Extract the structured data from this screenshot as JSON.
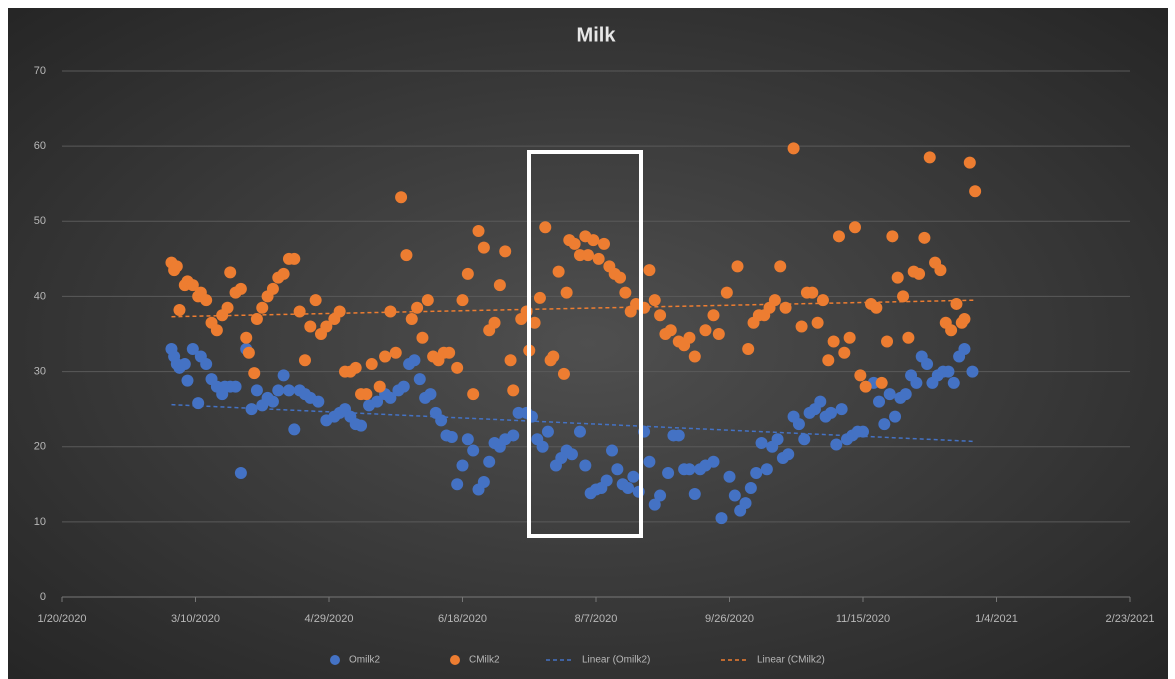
{
  "chart_data": {
    "type": "scatter",
    "title": "Milk",
    "xlim": [
      "2020-01-20",
      "2021-02-23"
    ],
    "xticks": [
      {
        "value": "2020-01-20",
        "label": "1/20/2020"
      },
      {
        "value": "2020-03-10",
        "label": "3/10/2020"
      },
      {
        "value": "2020-04-29",
        "label": "4/29/2020"
      },
      {
        "value": "2020-06-18",
        "label": "6/18/2020"
      },
      {
        "value": "2020-08-07",
        "label": "8/7/2020"
      },
      {
        "value": "2020-09-26",
        "label": "9/26/2020"
      },
      {
        "value": "2020-11-15",
        "label": "11/15/2020"
      },
      {
        "value": "2021-01-04",
        "label": "1/4/2021"
      },
      {
        "value": "2021-02-23",
        "label": "2/23/2021"
      }
    ],
    "ylim": [
      0,
      70
    ],
    "yticks": [
      0,
      10,
      20,
      30,
      40,
      50,
      60,
      70
    ],
    "grid": true,
    "legend": "bottom",
    "series": [
      {
        "name": "Omilk2",
        "color": "#4472c4",
        "x": [
          "2020-03-01",
          "2020-03-02",
          "2020-03-03",
          "2020-03-04",
          "2020-03-06",
          "2020-03-07",
          "2020-03-09",
          "2020-03-11",
          "2020-03-12",
          "2020-03-14",
          "2020-03-16",
          "2020-03-18",
          "2020-03-20",
          "2020-03-21",
          "2020-03-23",
          "2020-03-25",
          "2020-03-27",
          "2020-03-29",
          "2020-03-31",
          "2020-04-02",
          "2020-04-04",
          "2020-04-06",
          "2020-04-08",
          "2020-04-10",
          "2020-04-12",
          "2020-04-14",
          "2020-04-16",
          "2020-04-18",
          "2020-04-20",
          "2020-04-22",
          "2020-04-25",
          "2020-04-28",
          "2020-05-01",
          "2020-05-03",
          "2020-05-05",
          "2020-05-07",
          "2020-05-09",
          "2020-05-11",
          "2020-05-14",
          "2020-05-17",
          "2020-05-20",
          "2020-05-22",
          "2020-05-25",
          "2020-05-27",
          "2020-05-29",
          "2020-05-31",
          "2020-06-02",
          "2020-06-04",
          "2020-06-06",
          "2020-06-08",
          "2020-06-10",
          "2020-06-12",
          "2020-06-14",
          "2020-06-16",
          "2020-06-18",
          "2020-06-20",
          "2020-06-22",
          "2020-06-24",
          "2020-06-26",
          "2020-06-28",
          "2020-06-30",
          "2020-07-02",
          "2020-07-04",
          "2020-07-07",
          "2020-07-09",
          "2020-07-12",
          "2020-07-14",
          "2020-07-16",
          "2020-07-18",
          "2020-07-20",
          "2020-07-23",
          "2020-07-25",
          "2020-07-27",
          "2020-07-29",
          "2020-08-01",
          "2020-08-03",
          "2020-08-05",
          "2020-08-07",
          "2020-08-09",
          "2020-08-11",
          "2020-08-13",
          "2020-08-15",
          "2020-08-17",
          "2020-08-19",
          "2020-08-21",
          "2020-08-23",
          "2020-08-25",
          "2020-08-27",
          "2020-08-29",
          "2020-08-31",
          "2020-09-03",
          "2020-09-05",
          "2020-09-07",
          "2020-09-09",
          "2020-09-11",
          "2020-09-13",
          "2020-09-15",
          "2020-09-17",
          "2020-09-20",
          "2020-09-23",
          "2020-09-26",
          "2020-09-28",
          "2020-09-30",
          "2020-10-02",
          "2020-10-04",
          "2020-10-06",
          "2020-10-08",
          "2020-10-10",
          "2020-10-12",
          "2020-10-14",
          "2020-10-16",
          "2020-10-18",
          "2020-10-20",
          "2020-10-22",
          "2020-10-24",
          "2020-10-26",
          "2020-10-28",
          "2020-10-30",
          "2020-11-01",
          "2020-11-03",
          "2020-11-05",
          "2020-11-07",
          "2020-11-09",
          "2020-11-11",
          "2020-11-13",
          "2020-11-15",
          "2020-11-19",
          "2020-11-21",
          "2020-11-23",
          "2020-11-25",
          "2020-11-27",
          "2020-11-29",
          "2020-12-01",
          "2020-12-03",
          "2020-12-05",
          "2020-12-07",
          "2020-12-09",
          "2020-12-11",
          "2020-12-13",
          "2020-12-15",
          "2020-12-17",
          "2020-12-19",
          "2020-12-21",
          "2020-12-23",
          "2020-12-26"
        ],
        "values": [
          33,
          32,
          31,
          30.5,
          31,
          28.8,
          33,
          25.8,
          32,
          31,
          29,
          28,
          27,
          28,
          28,
          28,
          16.5,
          33,
          25,
          27.5,
          25.5,
          26.5,
          26,
          27.5,
          29.5,
          27.5,
          22.3,
          27.5,
          27,
          26.5,
          26,
          23.5,
          24,
          24.5,
          25,
          24,
          23,
          22.8,
          25.5,
          26,
          27,
          26.5,
          27.5,
          28,
          31,
          31.5,
          29,
          26.5,
          27,
          24.5,
          23.5,
          21.5,
          21.3,
          15,
          17.5,
          21,
          19.5,
          14.3,
          15.3,
          18,
          20.5,
          20,
          21,
          21.5,
          24.5,
          24.5,
          24,
          21,
          20,
          22,
          17.5,
          18.5,
          19.5,
          19,
          22,
          17.5,
          13.8,
          14.3,
          14.5,
          15.5,
          19.5,
          17,
          15,
          14.5,
          16,
          14,
          22,
          18,
          12.3,
          13.5,
          16.5,
          21.5,
          21.5,
          17,
          17,
          13.7,
          17,
          17.5,
          18,
          10.5,
          16,
          13.5,
          11.5,
          12.5,
          14.5,
          16.5,
          20.5,
          17,
          20,
          21,
          18.5,
          19,
          24,
          23,
          21,
          24.5,
          25,
          26,
          24,
          24.5,
          20.3,
          25,
          21,
          21.5,
          22,
          22,
          28.5,
          26,
          23,
          27,
          24,
          26.5,
          27,
          29.5,
          28.5,
          32,
          31,
          28.5,
          29.5,
          30,
          30,
          28.5,
          32,
          33,
          30
        ]
      },
      {
        "name": "CMilk2",
        "color": "#ed7d31",
        "x": [
          "2020-03-01",
          "2020-03-02",
          "2020-03-03",
          "2020-03-04",
          "2020-03-06",
          "2020-03-07",
          "2020-03-09",
          "2020-03-11",
          "2020-03-12",
          "2020-03-14",
          "2020-03-16",
          "2020-03-18",
          "2020-03-20",
          "2020-03-22",
          "2020-03-23",
          "2020-03-25",
          "2020-03-27",
          "2020-03-29",
          "2020-03-30",
          "2020-04-01",
          "2020-04-02",
          "2020-04-04",
          "2020-04-06",
          "2020-04-08",
          "2020-04-10",
          "2020-04-12",
          "2020-04-14",
          "2020-04-16",
          "2020-04-18",
          "2020-04-20",
          "2020-04-22",
          "2020-04-24",
          "2020-04-26",
          "2020-04-28",
          "2020-05-01",
          "2020-05-03",
          "2020-05-05",
          "2020-05-07",
          "2020-05-09",
          "2020-05-11",
          "2020-05-13",
          "2020-05-15",
          "2020-05-18",
          "2020-05-20",
          "2020-05-22",
          "2020-05-24",
          "2020-05-26",
          "2020-05-28",
          "2020-05-30",
          "2020-06-01",
          "2020-06-03",
          "2020-06-05",
          "2020-06-07",
          "2020-06-09",
          "2020-06-11",
          "2020-06-13",
          "2020-06-16",
          "2020-06-18",
          "2020-06-20",
          "2020-06-22",
          "2020-06-24",
          "2020-06-26",
          "2020-06-28",
          "2020-06-30",
          "2020-07-02",
          "2020-07-04",
          "2020-07-06",
          "2020-07-07",
          "2020-07-10",
          "2020-07-12",
          "2020-07-13",
          "2020-07-15",
          "2020-07-17",
          "2020-07-19",
          "2020-07-21",
          "2020-07-22",
          "2020-07-24",
          "2020-07-26",
          "2020-07-27",
          "2020-07-28",
          "2020-07-30",
          "2020-08-01",
          "2020-08-03",
          "2020-08-04",
          "2020-08-06",
          "2020-08-08",
          "2020-08-10",
          "2020-08-12",
          "2020-08-14",
          "2020-08-16",
          "2020-08-18",
          "2020-08-20",
          "2020-08-22",
          "2020-08-25",
          "2020-08-27",
          "2020-08-29",
          "2020-08-31",
          "2020-09-02",
          "2020-09-04",
          "2020-09-07",
          "2020-09-09",
          "2020-09-11",
          "2020-09-13",
          "2020-09-17",
          "2020-09-20",
          "2020-09-22",
          "2020-09-25",
          "2020-09-29",
          "2020-10-03",
          "2020-10-05",
          "2020-10-07",
          "2020-10-09",
          "2020-10-11",
          "2020-10-13",
          "2020-10-15",
          "2020-10-17",
          "2020-10-20",
          "2020-10-23",
          "2020-10-25",
          "2020-10-27",
          "2020-10-29",
          "2020-10-31",
          "2020-11-02",
          "2020-11-04",
          "2020-11-06",
          "2020-11-08",
          "2020-11-10",
          "2020-11-12",
          "2020-11-14",
          "2020-11-16",
          "2020-11-18",
          "2020-11-20",
          "2020-11-22",
          "2020-11-24",
          "2020-11-26",
          "2020-11-28",
          "2020-11-30",
          "2020-12-02",
          "2020-12-04",
          "2020-12-06",
          "2020-12-08",
          "2020-12-10",
          "2020-12-12",
          "2020-12-14",
          "2020-12-16",
          "2020-12-18",
          "2020-12-20",
          "2020-12-22",
          "2020-12-23",
          "2020-12-25",
          "2020-12-27"
        ],
        "values": [
          44.5,
          43.5,
          44,
          38.2,
          41.5,
          42,
          41.5,
          40,
          40.5,
          39.5,
          36.5,
          35.5,
          37.5,
          38.5,
          43.2,
          40.5,
          41,
          34.5,
          32.5,
          29.8,
          37,
          38.5,
          40,
          41,
          42.5,
          43,
          45,
          45,
          38,
          31.5,
          36,
          39.5,
          35,
          36,
          37,
          38,
          30,
          30,
          30.5,
          27,
          27,
          31,
          28,
          32,
          38,
          32.5,
          53.2,
          45.5,
          37,
          38.5,
          34.5,
          39.5,
          32,
          31.5,
          32.5,
          32.5,
          30.5,
          39.5,
          43,
          27,
          48.7,
          46.5,
          35.5,
          36.5,
          41.5,
          46,
          31.5,
          27.5,
          37,
          38,
          32.8,
          36.5,
          39.8,
          49.2,
          31.5,
          32,
          43.3,
          29.7,
          40.5,
          47.5,
          47,
          45.5,
          48,
          45.5,
          47.5,
          45,
          47,
          44,
          43,
          42.5,
          40.5,
          38,
          39,
          38.5,
          43.5,
          39.5,
          37.5,
          35,
          35.5,
          34,
          33.5,
          34.5,
          32,
          35.5,
          37.5,
          35,
          40.5,
          44,
          33,
          36.5,
          37.5,
          37.5,
          38.5,
          39.5,
          44,
          38.5,
          59.7,
          36,
          40.5,
          40.5,
          36.5,
          39.5,
          31.5,
          34,
          48,
          32.5,
          34.5,
          49.2,
          29.5,
          28,
          39,
          38.5,
          28.5,
          34,
          48,
          42.5,
          40,
          34.5,
          43.3,
          43,
          47.8,
          58.5,
          44.5,
          43.5,
          36.5,
          35.5,
          39,
          36.5,
          37,
          57.8,
          54
        ]
      },
      {
        "name": "Linear (Omilk2)",
        "color": "#4472c4",
        "line": "dashed",
        "x": [
          "2020-03-01",
          "2020-12-27"
        ],
        "values": [
          25.6,
          20.7
        ]
      },
      {
        "name": "Linear (CMilk2)",
        "color": "#ed7d31",
        "line": "dashed",
        "x": [
          "2020-03-01",
          "2020-12-27"
        ],
        "values": [
          37.3,
          39.5
        ]
      }
    ]
  }
}
